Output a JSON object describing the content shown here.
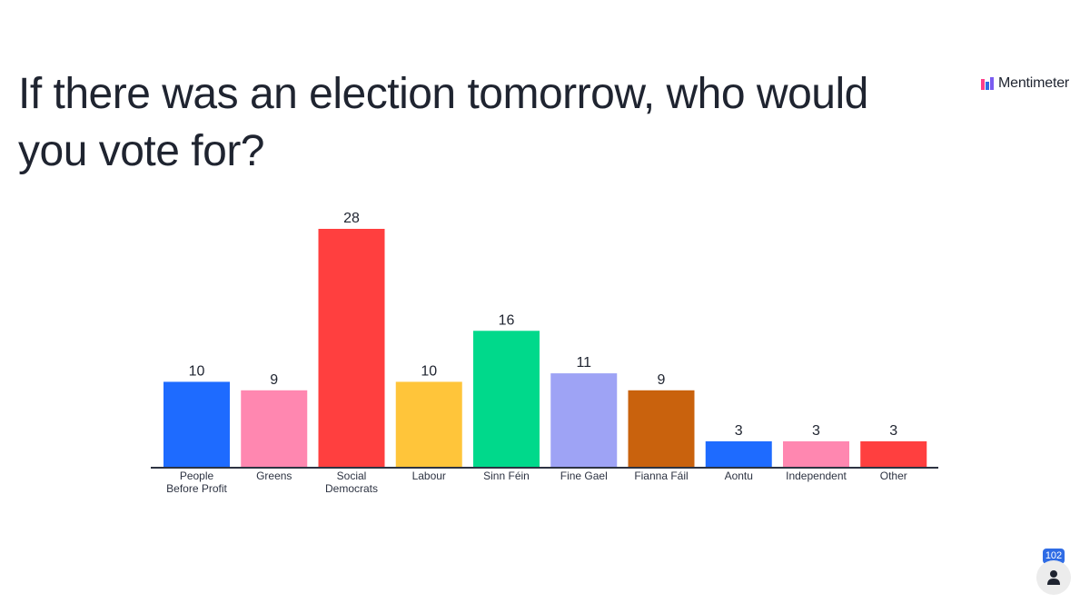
{
  "slide": {
    "question": "If there was an election tomorrow, who would you vote for?"
  },
  "brand": {
    "name": "Mentimeter",
    "logo_icon": "mentimeter-logo-icon",
    "colors": [
      "#ff3f8b",
      "#2f6ce5",
      "#7a5cf0"
    ]
  },
  "participants": {
    "count": "102",
    "icon": "person-icon"
  },
  "chart_data": {
    "type": "bar",
    "title": "",
    "xlabel": "",
    "ylabel": "",
    "ylim": [
      0,
      28
    ],
    "grid": false,
    "legend": "none",
    "categories": [
      [
        "People",
        "Before Profit"
      ],
      [
        "Greens"
      ],
      [
        "Social",
        "Democrats"
      ],
      [
        "Labour"
      ],
      [
        "Sinn Féin"
      ],
      [
        "Fine Gael"
      ],
      [
        "Fianna Fáil"
      ],
      [
        "Aontu"
      ],
      [
        "Independent"
      ],
      [
        "Other"
      ]
    ],
    "values": [
      10,
      9,
      28,
      10,
      16,
      11,
      9,
      3,
      3,
      3
    ],
    "colors": [
      "#1e6bff",
      "#ff87b0",
      "#ff3f3f",
      "#ffc53a",
      "#00d98b",
      "#9ea3f5",
      "#c9620d",
      "#1e6bff",
      "#ff87b0",
      "#ff3f3f"
    ]
  }
}
